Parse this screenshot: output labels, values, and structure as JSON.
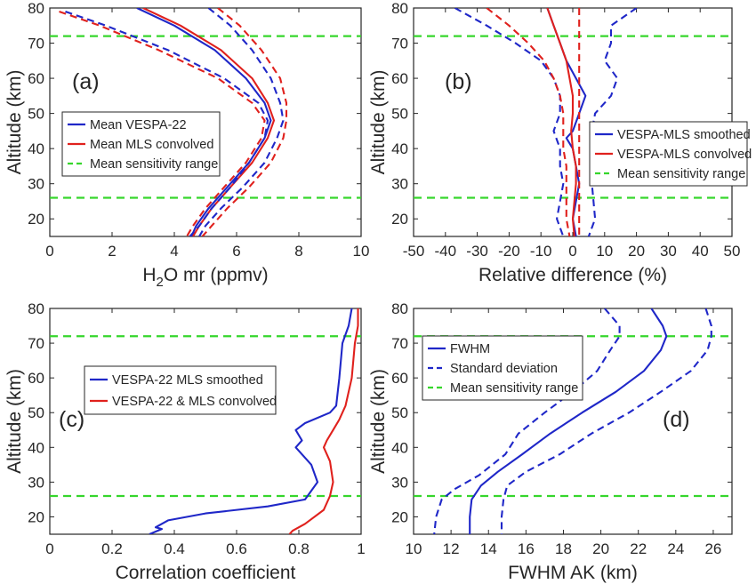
{
  "colors": {
    "blue": "#1f27c8",
    "red": "#e0211d",
    "green": "#36d62c"
  },
  "chart_data": [
    {
      "type": "line",
      "panel_label": "(a)",
      "xlabel_main": "H",
      "xlabel_sub": "2",
      "xlabel_rest": "O mr (ppmv)",
      "ylabel": "Altitude (km)",
      "xlim": [
        0,
        10
      ],
      "ylim": [
        15,
        80
      ],
      "xticks": [
        0,
        2,
        4,
        6,
        8,
        10
      ],
      "yticks": [
        20,
        30,
        40,
        50,
        60,
        70,
        80
      ],
      "sensitivity_lines": [
        26,
        72
      ],
      "legend": {
        "position": "mid-right",
        "entries": [
          {
            "label": "Mean VESPA-22",
            "color": "#1f27c8",
            "style": "solid"
          },
          {
            "label": "Mean MLS convolved",
            "color": "#e0211d",
            "style": "solid"
          },
          {
            "label": "Mean sensitivity range",
            "color": "#36d62c",
            "style": "dashed"
          }
        ]
      },
      "series": [
        {
          "color": "#1f27c8",
          "style": "solid",
          "x": [
            2.8,
            4.0,
            5.3,
            6.3,
            6.9,
            7.1,
            6.9,
            6.4,
            5.7,
            5.1,
            4.7,
            4.55
          ],
          "y": [
            80,
            75,
            68,
            60,
            53,
            48,
            43,
            36,
            29,
            23,
            18,
            15
          ]
        },
        {
          "color": "#e0211d",
          "style": "solid",
          "x": [
            3.0,
            4.2,
            5.5,
            6.5,
            7.0,
            7.2,
            7.0,
            6.5,
            5.8,
            5.2,
            4.8,
            4.6
          ],
          "y": [
            80,
            75,
            68,
            60,
            53,
            48,
            43,
            36,
            29,
            23,
            18,
            15
          ]
        },
        {
          "color": "#1f27c8",
          "style": "dashed",
          "x": [
            0.5,
            1.8,
            3.8,
            5.6,
            6.7,
            7.0,
            6.9,
            6.4,
            5.8,
            5.2,
            4.8,
            4.5
          ],
          "y": [
            79,
            75,
            68,
            60,
            53,
            48,
            43,
            36,
            29,
            23,
            18,
            15
          ]
        },
        {
          "color": "#e0211d",
          "style": "dashed",
          "x": [
            0.3,
            1.6,
            3.5,
            5.4,
            6.5,
            6.9,
            6.8,
            6.3,
            5.6,
            5.0,
            4.6,
            4.4
          ],
          "y": [
            79,
            75,
            68,
            60,
            53,
            48,
            43,
            36,
            29,
            23,
            18,
            15
          ]
        },
        {
          "color": "#1f27c8",
          "style": "dashed",
          "x": [
            5.1,
            5.8,
            6.5,
            7.1,
            7.4,
            7.5,
            7.3,
            6.9,
            6.2,
            5.5,
            5.0,
            4.8
          ],
          "y": [
            80,
            75,
            68,
            60,
            53,
            48,
            43,
            36,
            29,
            23,
            18,
            15
          ]
        },
        {
          "color": "#e0211d",
          "style": "dashed",
          "x": [
            5.4,
            6.1,
            6.8,
            7.4,
            7.6,
            7.6,
            7.5,
            7.1,
            6.4,
            5.7,
            5.2,
            4.9
          ],
          "y": [
            80,
            75,
            68,
            60,
            53,
            48,
            43,
            36,
            29,
            23,
            18,
            15
          ]
        }
      ]
    },
    {
      "type": "line",
      "panel_label": "(b)",
      "xlabel": "Relative difference (%)",
      "ylabel": "Altitude (km)",
      "xlim": [
        -50,
        50
      ],
      "ylim": [
        15,
        80
      ],
      "xticks": [
        -50,
        -40,
        -30,
        -20,
        -10,
        0,
        10,
        20,
        30,
        40,
        50
      ],
      "yticks": [
        20,
        30,
        40,
        50,
        60,
        70,
        80
      ],
      "sensitivity_lines": [
        26,
        72
      ],
      "legend": {
        "position": "mid-right",
        "entries": [
          {
            "label": "VESPA-MLS smoothed",
            "color": "#1f27c8",
            "style": "solid"
          },
          {
            "label": "VESPA-MLS convolved",
            "color": "#e0211d",
            "style": "solid"
          },
          {
            "label": "Mean sensitivity range",
            "color": "#36d62c",
            "style": "dashed"
          }
        ]
      },
      "series": [
        {
          "color": "#1f27c8",
          "style": "solid",
          "x": [
            -8,
            -6,
            -4,
            -2,
            1,
            4,
            2,
            0,
            -2,
            0,
            1,
            2,
            0,
            1
          ],
          "y": [
            80,
            75,
            70,
            65,
            60,
            55,
            50,
            45,
            43,
            40,
            35,
            30,
            20,
            15
          ]
        },
        {
          "color": "#e0211d",
          "style": "solid",
          "x": [
            -8,
            -6,
            -4,
            -2,
            -1,
            0,
            0,
            -0.5,
            0,
            1,
            1,
            0.5,
            0,
            0.5
          ],
          "y": [
            80,
            75,
            70,
            65,
            60,
            55,
            50,
            45,
            40,
            35,
            30,
            25,
            20,
            15
          ]
        },
        {
          "color": "#1f27c8",
          "style": "dashed",
          "x": [
            -37,
            -27,
            -18,
            -10,
            -6,
            -4,
            -4,
            -6,
            -4,
            -4,
            -3,
            -5,
            -3
          ],
          "y": [
            80,
            75,
            70,
            65,
            60,
            55,
            50,
            45,
            40,
            35,
            30,
            20,
            15
          ]
        },
        {
          "color": "#1f27c8",
          "style": "dashed",
          "x": [
            20,
            12,
            12,
            10,
            14,
            12,
            7,
            6,
            8,
            6,
            6,
            7,
            5
          ],
          "y": [
            80,
            75,
            70,
            65,
            60,
            55,
            50,
            45,
            40,
            35,
            30,
            20,
            15
          ]
        },
        {
          "color": "#e0211d",
          "style": "dashed",
          "x": [
            -27,
            -20,
            -14,
            -9,
            -6,
            -4,
            -3,
            -3,
            -3,
            -2,
            -2,
            -2,
            -1
          ],
          "y": [
            80,
            75,
            70,
            65,
            60,
            55,
            50,
            45,
            40,
            35,
            30,
            20,
            15
          ]
        },
        {
          "color": "#e0211d",
          "style": "dashed",
          "x": [
            2,
            2,
            2,
            2,
            2,
            2,
            2,
            2,
            2,
            2,
            2,
            2,
            2
          ],
          "y": [
            80,
            75,
            70,
            65,
            60,
            55,
            50,
            45,
            40,
            35,
            30,
            20,
            15
          ]
        }
      ]
    },
    {
      "type": "line",
      "panel_label": "(c)",
      "xlabel": "Correlation coefficient",
      "ylabel": "Altitude (km)",
      "xlim": [
        0,
        1
      ],
      "ylim": [
        15,
        80
      ],
      "xticks": [
        0,
        0.2,
        0.4,
        0.6,
        0.8,
        1
      ],
      "yticks": [
        20,
        30,
        40,
        50,
        60,
        70,
        80
      ],
      "sensitivity_lines": [
        26,
        72
      ],
      "legend": {
        "position": "upper-middle",
        "entries": [
          {
            "label": "VESPA-22 MLS smoothed",
            "color": "#1f27c8",
            "style": "solid"
          },
          {
            "label": "VESPA-22 & MLS convolved",
            "color": "#e0211d",
            "style": "solid"
          }
        ]
      },
      "series": [
        {
          "color": "#1f27c8",
          "style": "solid",
          "x": [
            0.97,
            0.96,
            0.94,
            0.93,
            0.92,
            0.9,
            0.82,
            0.79,
            0.81,
            0.79,
            0.84,
            0.86,
            0.82,
            0.7,
            0.5,
            0.38,
            0.34,
            0.36,
            0.32
          ],
          "y": [
            80,
            75,
            70,
            60,
            52,
            50,
            47,
            45,
            42,
            40,
            35,
            30,
            25,
            23,
            21,
            19,
            17,
            16.5,
            15
          ]
        },
        {
          "color": "#e0211d",
          "style": "solid",
          "x": [
            0.99,
            0.99,
            0.98,
            0.97,
            0.95,
            0.93,
            0.91,
            0.89,
            0.88,
            0.9,
            0.91,
            0.9,
            0.88,
            0.82,
            0.78,
            0.77
          ],
          "y": [
            80,
            75,
            70,
            60,
            52,
            48,
            45,
            42,
            40,
            36,
            30,
            26,
            22,
            18,
            16,
            15
          ]
        }
      ]
    },
    {
      "type": "line",
      "panel_label": "(d)",
      "xlabel": "FWHM AK (km)",
      "ylabel": "Altitude (km)",
      "xlim": [
        10,
        27
      ],
      "ylim": [
        15,
        80
      ],
      "xticks": [
        10,
        12,
        14,
        16,
        18,
        20,
        22,
        24,
        26
      ],
      "yticks": [
        20,
        30,
        40,
        50,
        60,
        70,
        80
      ],
      "sensitivity_lines": [
        26,
        72
      ],
      "legend": {
        "position": "upper-left",
        "entries": [
          {
            "label": "FWHM",
            "color": "#1f27c8",
            "style": "solid"
          },
          {
            "label": "Standard deviation",
            "color": "#1f27c8",
            "style": "dashed"
          },
          {
            "label": "Mean sensitivity range",
            "color": "#36d62c",
            "style": "dashed"
          }
        ]
      },
      "series": [
        {
          "color": "#1f27c8",
          "style": "solid",
          "x": [
            22.7,
            23.3,
            23.5,
            23.2,
            22.3,
            20.8,
            19.0,
            17.3,
            15.8,
            14.5,
            13.6,
            13.1,
            13.0,
            13.0
          ],
          "y": [
            80,
            75,
            72,
            68,
            62,
            56,
            50,
            44,
            38,
            33,
            29,
            25,
            20,
            15
          ]
        },
        {
          "color": "#1f27c8",
          "style": "dashed",
          "x": [
            20.2,
            21.0,
            21.0,
            20.5,
            19.8,
            18.5,
            17.0,
            15.6,
            14.9,
            13.5,
            12.2,
            11.5,
            11.2,
            11.1
          ],
          "y": [
            80,
            75,
            72,
            68,
            62,
            56,
            50,
            44,
            38,
            32,
            28,
            25,
            20,
            15
          ]
        },
        {
          "color": "#1f27c8",
          "style": "dashed",
          "x": [
            25.6,
            25.9,
            25.9,
            25.7,
            24.8,
            23.2,
            21.5,
            19.5,
            17.8,
            16.0,
            15.0,
            14.8,
            14.7,
            14.7
          ],
          "y": [
            80,
            75,
            72,
            68,
            62,
            56,
            50,
            44,
            38,
            33,
            29,
            25,
            20,
            15
          ]
        }
      ]
    }
  ]
}
